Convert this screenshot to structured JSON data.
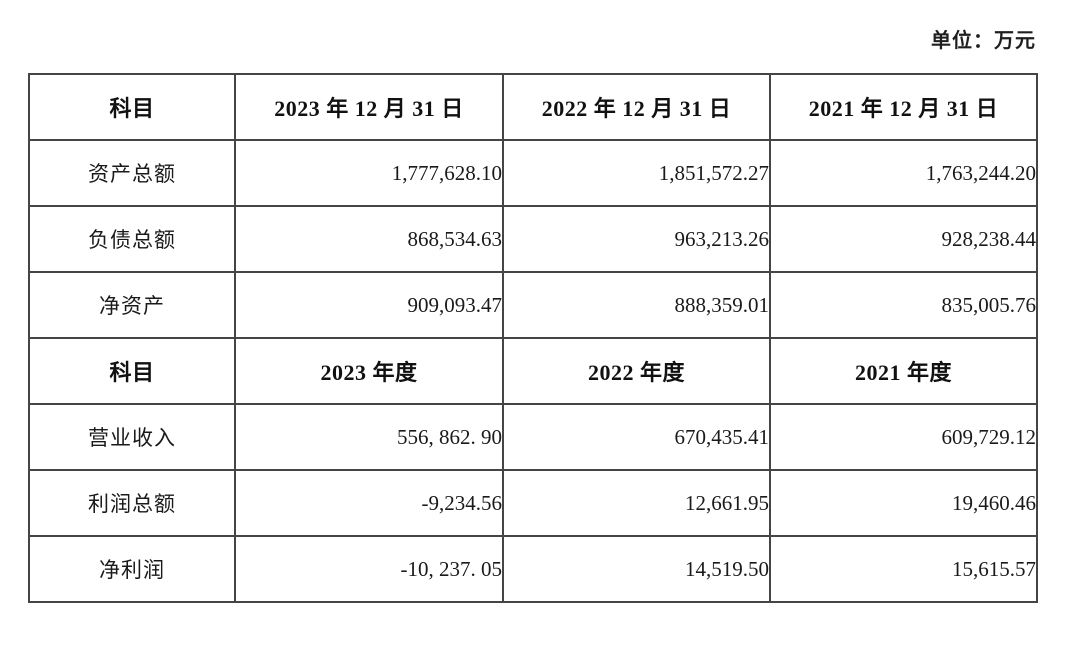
{
  "unit_label": "单位：万元",
  "table": {
    "sections": [
      {
        "header": {
          "subject": "科目",
          "cols": [
            "2023 年 12 月 31 日",
            "2022 年 12 月 31 日",
            "2021 年 12 月 31 日"
          ]
        },
        "rows": [
          {
            "label": "资产总额",
            "values": [
              "1,777,628.10",
              "1,851,572.27",
              "1,763,244.20"
            ]
          },
          {
            "label": "负债总额",
            "values": [
              "868,534.63",
              "963,213.26",
              "928,238.44"
            ]
          },
          {
            "label": "净资产",
            "values": [
              "909,093.47",
              "888,359.01",
              "835,005.76"
            ]
          }
        ]
      },
      {
        "header": {
          "subject": "科目",
          "cols": [
            "2023 年度",
            "2022 年度",
            "2021 年度"
          ]
        },
        "rows": [
          {
            "label": "营业收入",
            "values": [
              "556, 862. 90",
              "670,435.41",
              "609,729.12"
            ]
          },
          {
            "label": "利润总额",
            "values": [
              "-9,234.56",
              "12,661.95",
              "19,460.46"
            ]
          },
          {
            "label": "净利润",
            "values": [
              "-10, 237. 05",
              "14,519.50",
              "15,615.57"
            ]
          }
        ]
      }
    ]
  }
}
